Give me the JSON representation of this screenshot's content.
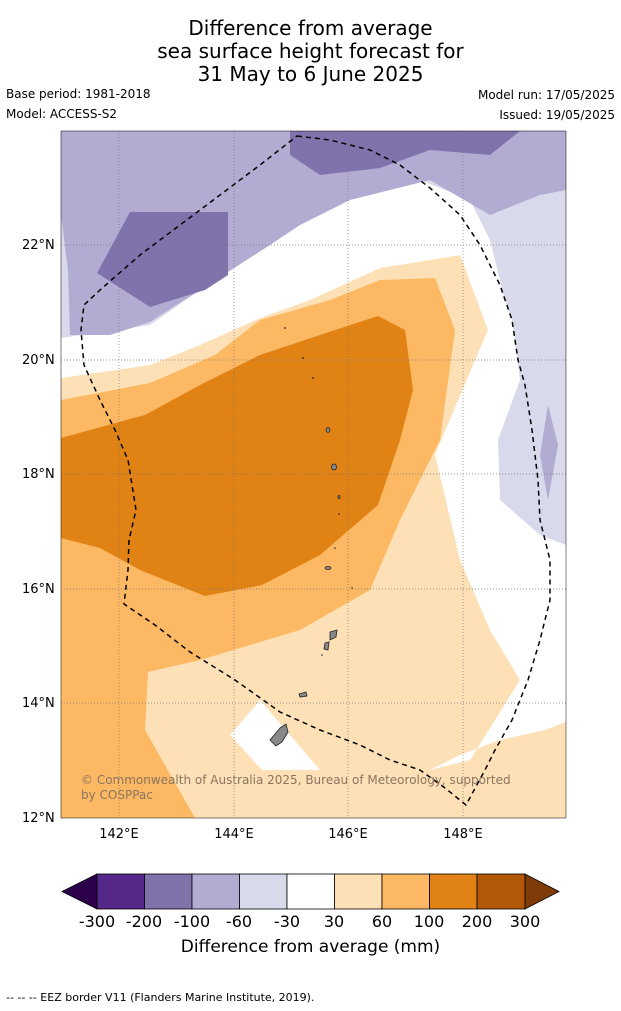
{
  "title": {
    "line1": "Difference from average",
    "line2": "sea surface height forecast for",
    "line3": "31 May to 6 June 2025"
  },
  "meta": {
    "base_period": "Base period: 1981-2018",
    "model": "Model: ACCESS-S2",
    "model_run": "Model run: 17/05/2025",
    "issued": "Issued: 19/05/2025"
  },
  "map": {
    "lat_labels": [
      "22°N",
      "20°N",
      "18°N",
      "16°N",
      "14°N",
      "12°N"
    ],
    "lon_labels": [
      "142°E",
      "144°E",
      "146°E",
      "148°E"
    ],
    "attribution": "© Commonwealth of Australia 2025, Bureau of Meteorology, supported by COSPPac",
    "boundary": "EEZ border"
  },
  "colorbar": {
    "title": "Difference from average (mm)",
    "labels": [
      "-300",
      "-200",
      "-100",
      "-60",
      "-30",
      "30",
      "60",
      "100",
      "200",
      "300"
    ],
    "colors": [
      "#2d004b",
      "#542788",
      "#8073ac",
      "#b2abd2",
      "#d8daeb",
      "#ffffff",
      "#fee0b6",
      "#fdb863",
      "#e08214",
      "#b35806",
      "#7f3b08"
    ]
  },
  "footer": "--  --  -- EEZ border V11 (Flanders Marine Institute, 2019)."
}
